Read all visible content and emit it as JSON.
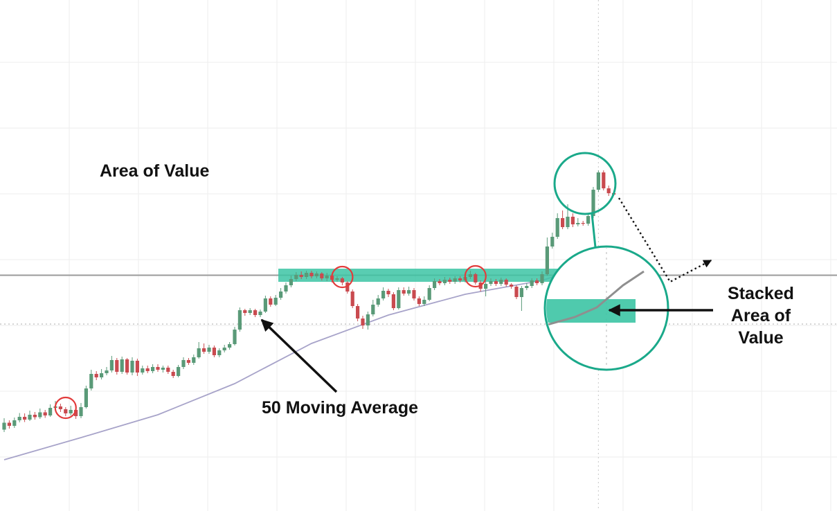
{
  "annotations": {
    "area_of_value": "Area of Value",
    "moving_average": "50 Moving Average",
    "stacked_line1": "Stacked",
    "stacked_line2": "Area of",
    "stacked_line3": "Value"
  },
  "colors": {
    "bull": "#5a9a78",
    "bear": "#c94a4f",
    "moving_average_line": "#a7a3c9",
    "zone_fill": "#3cc4a4",
    "zone_outline": "#1aa98a",
    "touch_circle": "#e23b3b",
    "resistance_line": "#9a9a9a",
    "grid": "#eeeeee",
    "text": "#111111"
  },
  "chart_data": {
    "type": "candlestick",
    "title": "",
    "xlabel": "",
    "ylabel": "",
    "ylim": [
      0,
      100
    ],
    "candles": [
      {
        "o": 23.5,
        "c": 25.5,
        "h": 26.8,
        "l": 22.8
      },
      {
        "o": 25.5,
        "c": 24.6,
        "h": 26.2,
        "l": 23.8
      },
      {
        "o": 24.6,
        "c": 26.2,
        "h": 27.0,
        "l": 24.0
      },
      {
        "o": 26.2,
        "c": 27.2,
        "h": 28.3,
        "l": 25.6
      },
      {
        "o": 27.2,
        "c": 26.4,
        "h": 28.2,
        "l": 25.7
      },
      {
        "o": 26.4,
        "c": 27.8,
        "h": 29.0,
        "l": 26.0
      },
      {
        "o": 27.8,
        "c": 27.1,
        "h": 28.6,
        "l": 26.4
      },
      {
        "o": 27.1,
        "c": 28.5,
        "h": 29.6,
        "l": 26.6
      },
      {
        "o": 28.5,
        "c": 27.6,
        "h": 29.2,
        "l": 26.9
      },
      {
        "o": 27.6,
        "c": 29.8,
        "h": 30.8,
        "l": 27.2
      },
      {
        "o": 29.8,
        "c": 30.2,
        "h": 31.8,
        "l": 29.0
      },
      {
        "o": 30.2,
        "c": 29.4,
        "h": 31.0,
        "l": 28.6
      },
      {
        "o": 29.4,
        "c": 28.2,
        "h": 30.0,
        "l": 27.4
      },
      {
        "o": 28.2,
        "c": 29.2,
        "h": 30.4,
        "l": 27.6
      },
      {
        "o": 29.2,
        "c": 27.4,
        "h": 29.8,
        "l": 26.6
      },
      {
        "o": 27.4,
        "c": 30.0,
        "h": 31.2,
        "l": 26.8
      },
      {
        "o": 30.0,
        "c": 35.4,
        "h": 36.2,
        "l": 29.6
      },
      {
        "o": 35.4,
        "c": 39.6,
        "h": 40.8,
        "l": 34.8
      },
      {
        "o": 39.6,
        "c": 38.6,
        "h": 40.4,
        "l": 37.8
      },
      {
        "o": 38.6,
        "c": 39.8,
        "h": 41.0,
        "l": 38.0
      },
      {
        "o": 39.8,
        "c": 40.6,
        "h": 41.6,
        "l": 39.2
      },
      {
        "o": 40.6,
        "c": 43.6,
        "h": 44.8,
        "l": 40.0
      },
      {
        "o": 43.6,
        "c": 40.2,
        "h": 44.2,
        "l": 39.4
      },
      {
        "o": 40.2,
        "c": 43.8,
        "h": 44.6,
        "l": 39.6
      },
      {
        "o": 43.8,
        "c": 40.0,
        "h": 44.2,
        "l": 39.4
      },
      {
        "o": 40.0,
        "c": 43.4,
        "h": 44.4,
        "l": 39.2
      },
      {
        "o": 43.4,
        "c": 40.0,
        "h": 44.0,
        "l": 39.0
      },
      {
        "o": 40.0,
        "c": 41.2,
        "h": 42.0,
        "l": 39.4
      },
      {
        "o": 41.2,
        "c": 40.4,
        "h": 42.0,
        "l": 39.8
      },
      {
        "o": 40.4,
        "c": 41.6,
        "h": 42.4,
        "l": 39.8
      },
      {
        "o": 41.6,
        "c": 40.8,
        "h": 42.4,
        "l": 40.2
      },
      {
        "o": 40.8,
        "c": 41.4,
        "h": 42.0,
        "l": 40.0
      },
      {
        "o": 41.4,
        "c": 40.2,
        "h": 42.0,
        "l": 39.6
      },
      {
        "o": 40.2,
        "c": 39.0,
        "h": 40.8,
        "l": 38.4
      },
      {
        "o": 39.0,
        "c": 41.6,
        "h": 42.2,
        "l": 38.6
      },
      {
        "o": 41.6,
        "c": 43.6,
        "h": 44.4,
        "l": 41.0
      },
      {
        "o": 43.6,
        "c": 42.8,
        "h": 44.2,
        "l": 42.2
      },
      {
        "o": 42.8,
        "c": 44.4,
        "h": 45.2,
        "l": 42.2
      },
      {
        "o": 44.4,
        "c": 47.0,
        "h": 48.8,
        "l": 44.0
      },
      {
        "o": 47.0,
        "c": 46.0,
        "h": 48.4,
        "l": 45.4
      },
      {
        "o": 46.0,
        "c": 47.2,
        "h": 48.0,
        "l": 45.4
      },
      {
        "o": 47.2,
        "c": 45.0,
        "h": 47.8,
        "l": 44.4
      },
      {
        "o": 45.0,
        "c": 46.4,
        "h": 47.0,
        "l": 44.4
      },
      {
        "o": 46.4,
        "c": 47.2,
        "h": 48.0,
        "l": 45.8
      },
      {
        "o": 47.2,
        "c": 48.2,
        "h": 48.8,
        "l": 46.6
      },
      {
        "o": 48.2,
        "c": 52.4,
        "h": 53.2,
        "l": 47.8
      },
      {
        "o": 52.4,
        "c": 58.0,
        "h": 58.8,
        "l": 51.8
      },
      {
        "o": 58.0,
        "c": 57.2,
        "h": 58.4,
        "l": 56.4
      },
      {
        "o": 57.2,
        "c": 58.0,
        "h": 58.6,
        "l": 56.6
      },
      {
        "o": 58.0,
        "c": 56.6,
        "h": 58.4,
        "l": 56.0
      },
      {
        "o": 56.6,
        "c": 57.6,
        "h": 58.2,
        "l": 56.0
      },
      {
        "o": 57.6,
        "c": 61.4,
        "h": 62.2,
        "l": 57.2
      },
      {
        "o": 61.4,
        "c": 59.6,
        "h": 62.0,
        "l": 59.0
      },
      {
        "o": 59.6,
        "c": 61.6,
        "h": 62.4,
        "l": 59.2
      },
      {
        "o": 61.6,
        "c": 63.4,
        "h": 64.4,
        "l": 61.0
      },
      {
        "o": 63.4,
        "c": 65.2,
        "h": 66.0,
        "l": 62.8
      },
      {
        "o": 65.2,
        "c": 67.0,
        "h": 68.0,
        "l": 64.6
      },
      {
        "o": 67.0,
        "c": 68.2,
        "h": 69.0,
        "l": 66.4
      },
      {
        "o": 68.2,
        "c": 67.6,
        "h": 69.2,
        "l": 67.0
      },
      {
        "o": 67.6,
        "c": 68.8,
        "h": 69.4,
        "l": 67.0
      },
      {
        "o": 68.8,
        "c": 67.8,
        "h": 69.4,
        "l": 67.2
      },
      {
        "o": 67.8,
        "c": 68.6,
        "h": 69.2,
        "l": 67.2
      },
      {
        "o": 68.6,
        "c": 67.2,
        "h": 69.0,
        "l": 66.6
      },
      {
        "o": 67.2,
        "c": 68.0,
        "h": 68.8,
        "l": 66.4
      },
      {
        "o": 68.0,
        "c": 66.8,
        "h": 68.4,
        "l": 66.0
      },
      {
        "o": 66.8,
        "c": 67.2,
        "h": 67.8,
        "l": 66.2
      },
      {
        "o": 67.2,
        "c": 66.0,
        "h": 67.6,
        "l": 65.2
      },
      {
        "o": 66.0,
        "c": 63.4,
        "h": 66.4,
        "l": 62.8
      },
      {
        "o": 63.4,
        "c": 59.2,
        "h": 64.0,
        "l": 58.6
      },
      {
        "o": 59.2,
        "c": 55.6,
        "h": 59.8,
        "l": 54.8
      },
      {
        "o": 55.6,
        "c": 53.6,
        "h": 56.4,
        "l": 52.6
      },
      {
        "o": 53.6,
        "c": 56.8,
        "h": 57.6,
        "l": 52.4
      },
      {
        "o": 56.8,
        "c": 59.6,
        "h": 61.0,
        "l": 56.2
      },
      {
        "o": 59.6,
        "c": 61.4,
        "h": 62.4,
        "l": 59.0
      },
      {
        "o": 61.4,
        "c": 63.6,
        "h": 64.6,
        "l": 60.8
      },
      {
        "o": 63.6,
        "c": 62.6,
        "h": 64.2,
        "l": 61.8
      },
      {
        "o": 62.6,
        "c": 58.6,
        "h": 63.2,
        "l": 58.0
      },
      {
        "o": 58.6,
        "c": 63.8,
        "h": 64.6,
        "l": 58.2
      },
      {
        "o": 63.8,
        "c": 62.8,
        "h": 64.6,
        "l": 62.2
      },
      {
        "o": 62.8,
        "c": 63.8,
        "h": 64.8,
        "l": 62.2
      },
      {
        "o": 63.8,
        "c": 61.4,
        "h": 64.4,
        "l": 60.8
      },
      {
        "o": 61.4,
        "c": 59.8,
        "h": 62.0,
        "l": 59.2
      },
      {
        "o": 59.8,
        "c": 61.0,
        "h": 62.0,
        "l": 59.2
      },
      {
        "o": 61.0,
        "c": 64.4,
        "h": 65.2,
        "l": 60.6
      },
      {
        "o": 64.4,
        "c": 66.4,
        "h": 67.2,
        "l": 63.8
      },
      {
        "o": 66.4,
        "c": 65.8,
        "h": 67.0,
        "l": 65.2
      },
      {
        "o": 65.8,
        "c": 66.8,
        "h": 67.6,
        "l": 65.2
      },
      {
        "o": 66.8,
        "c": 66.2,
        "h": 67.4,
        "l": 65.6
      },
      {
        "o": 66.2,
        "c": 67.2,
        "h": 67.8,
        "l": 65.6
      },
      {
        "o": 67.2,
        "c": 66.6,
        "h": 67.8,
        "l": 66.0
      },
      {
        "o": 66.6,
        "c": 67.6,
        "h": 68.4,
        "l": 66.0
      },
      {
        "o": 67.6,
        "c": 68.4,
        "h": 69.4,
        "l": 67.0
      },
      {
        "o": 68.4,
        "c": 66.0,
        "h": 68.8,
        "l": 65.4
      },
      {
        "o": 66.0,
        "c": 64.2,
        "h": 66.6,
        "l": 63.4
      },
      {
        "o": 64.2,
        "c": 65.6,
        "h": 66.4,
        "l": 62.0
      },
      {
        "o": 65.6,
        "c": 66.4,
        "h": 67.2,
        "l": 65.0
      },
      {
        "o": 66.4,
        "c": 65.6,
        "h": 67.0,
        "l": 65.0
      },
      {
        "o": 65.6,
        "c": 66.8,
        "h": 67.4,
        "l": 65.0
      },
      {
        "o": 66.8,
        "c": 65.4,
        "h": 67.2,
        "l": 64.8
      },
      {
        "o": 65.4,
        "c": 64.8,
        "h": 65.8,
        "l": 64.2
      },
      {
        "o": 64.8,
        "c": 61.8,
        "h": 65.2,
        "l": 61.2
      },
      {
        "o": 61.8,
        "c": 64.4,
        "h": 65.0,
        "l": 57.8
      },
      {
        "o": 64.4,
        "c": 65.0,
        "h": 65.8,
        "l": 63.8
      },
      {
        "o": 65.0,
        "c": 66.6,
        "h": 67.2,
        "l": 64.4
      },
      {
        "o": 66.6,
        "c": 65.8,
        "h": 67.2,
        "l": 65.2
      },
      {
        "o": 65.8,
        "c": 68.4,
        "h": 69.2,
        "l": 65.2
      },
      {
        "o": 68.4,
        "c": 76.4,
        "h": 79.0,
        "l": 68.0
      },
      {
        "o": 76.4,
        "c": 79.2,
        "h": 80.4,
        "l": 75.8
      },
      {
        "o": 79.2,
        "c": 84.6,
        "h": 86.0,
        "l": 78.6
      },
      {
        "o": 84.6,
        "c": 82.0,
        "h": 86.8,
        "l": 81.4
      },
      {
        "o": 82.0,
        "c": 85.0,
        "h": 88.6,
        "l": 81.4
      },
      {
        "o": 85.0,
        "c": 82.8,
        "h": 86.0,
        "l": 82.0
      },
      {
        "o": 82.8,
        "c": 83.2,
        "h": 84.6,
        "l": 82.2
      },
      {
        "o": 83.2,
        "c": 83.0,
        "h": 83.8,
        "l": 82.4
      },
      {
        "o": 83.0,
        "c": 85.2,
        "h": 86.0,
        "l": 82.4
      },
      {
        "o": 85.2,
        "c": 92.8,
        "h": 93.6,
        "l": 84.6
      },
      {
        "o": 92.8,
        "c": 97.8,
        "h": 98.4,
        "l": 92.2
      },
      {
        "o": 97.8,
        "c": 93.2,
        "h": 98.4,
        "l": 92.6
      },
      {
        "o": 93.2,
        "c": 91.8,
        "h": 94.0,
        "l": 91.0
      },
      {
        "o": 91.8,
        "c": 91.4,
        "h": 92.2,
        "l": 91.0
      }
    ],
    "moving_average": {
      "name": "50 Moving Average",
      "x": [
        0,
        15,
        30,
        45,
        60,
        75,
        90,
        105,
        110,
        118
      ],
      "y": [
        14.8,
        21.2,
        27.8,
        36.8,
        48.4,
        56.6,
        62.6,
        66.6,
        69.0,
        75.0
      ]
    },
    "area_of_value": [
      66.2,
      70.0
    ],
    "resistance_level": 68.1,
    "support_level": 54.0,
    "ma_touches": [
      12,
      66,
      92
    ],
    "projection": {
      "x": [
        120,
        130,
        138
      ],
      "y": [
        90.4,
        66.2,
        72.4
      ]
    },
    "grid": true
  }
}
